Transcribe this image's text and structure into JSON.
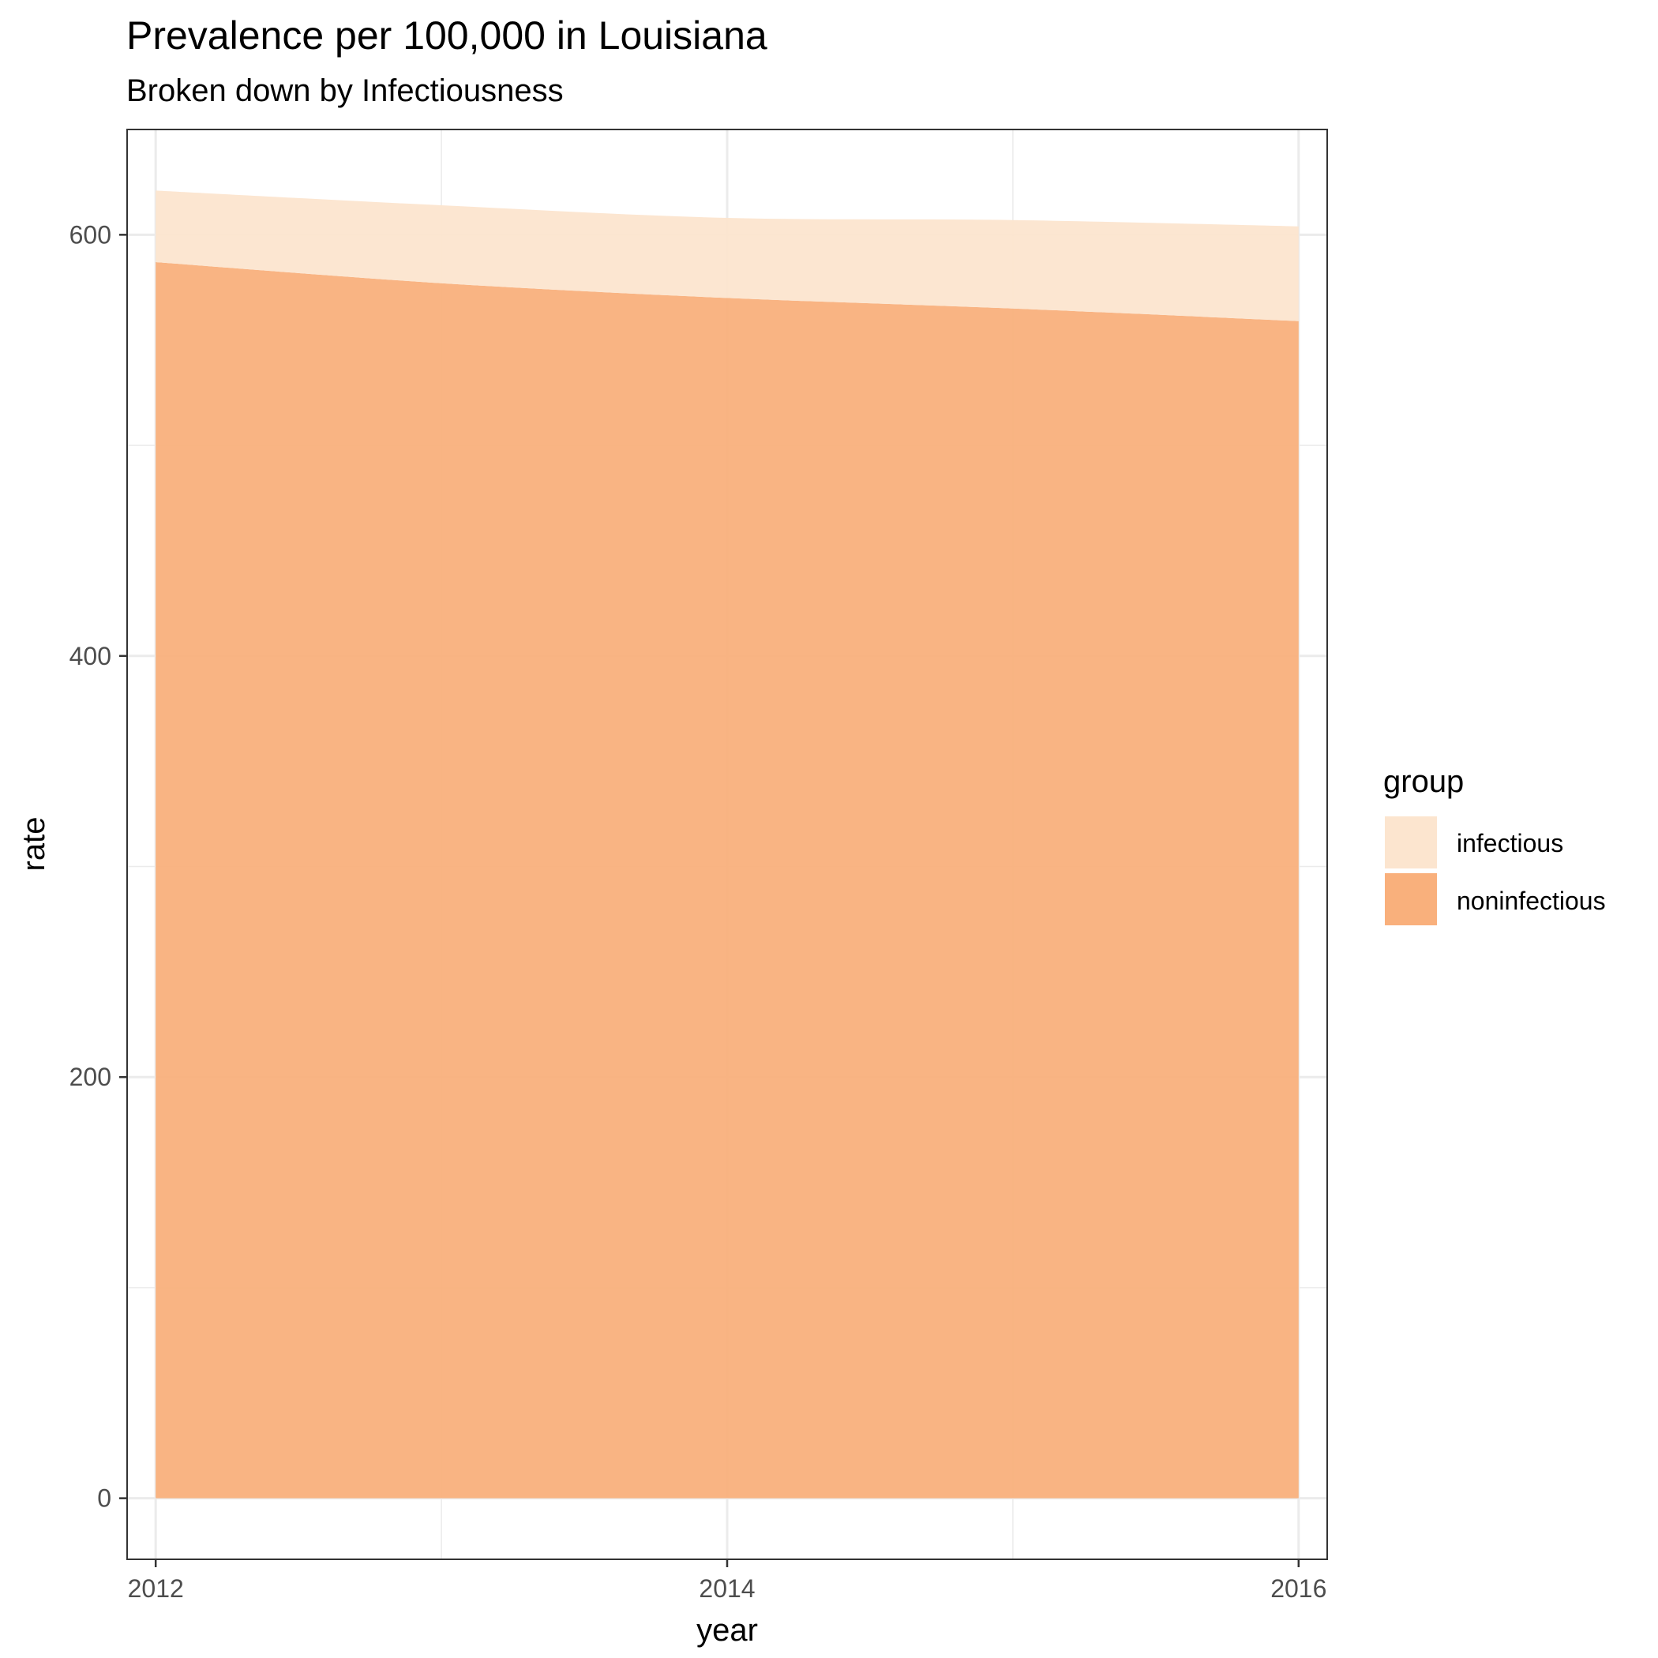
{
  "chart_data": {
    "type": "area",
    "stacked": true,
    "title": "Prevalence per 100,000 in Louisiana",
    "subtitle": "Broken down by Infectiousness",
    "xlabel": "year",
    "ylabel": "rate",
    "x": [
      2012,
      2013,
      2014,
      2015,
      2016
    ],
    "xlim": [
      2011.9,
      2016.1
    ],
    "ylim": [
      -29,
      650
    ],
    "x_ticks": [
      "2012",
      "2014",
      "2016"
    ],
    "y_ticks": [
      "0",
      "200",
      "400",
      "600"
    ],
    "grid": true,
    "legend": {
      "title": "group",
      "placement": "right"
    },
    "series": [
      {
        "name": "noninfectious",
        "values": [
          587,
          577,
          570,
          565,
          559
        ],
        "color": "#F9B07C"
      },
      {
        "name": "infectious",
        "values": [
          34,
          37,
          38,
          42,
          45
        ],
        "color": "#FCE5CF"
      }
    ]
  }
}
